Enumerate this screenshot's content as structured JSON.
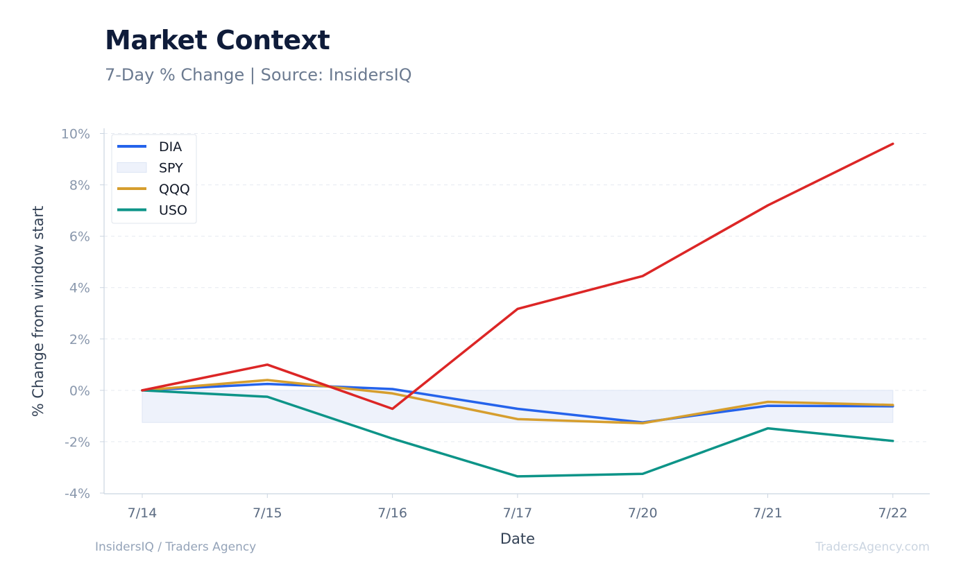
{
  "title": "Market Context",
  "subtitle": "7-Day % Change | Source: InsidersIQ",
  "footer": {
    "left": "InsidersIQ / Traders Agency",
    "right": "TradersAgency.com"
  },
  "chart_data": {
    "type": "line",
    "xlabel": "Date",
    "ylabel": "% Change from window start",
    "categories": [
      "7/14",
      "7/15",
      "7/16",
      "7/17",
      "7/20",
      "7/21",
      "7/22"
    ],
    "ylim": [
      -4,
      10
    ],
    "yticks": [
      -4,
      -2,
      0,
      2,
      4,
      6,
      8,
      10
    ],
    "ytick_labels": [
      "-4%",
      "-2%",
      "0%",
      "2%",
      "4%",
      "6%",
      "8%",
      "10%"
    ],
    "grid": true,
    "legend_position": "top-left",
    "series": [
      {
        "name": "DIA",
        "style": "line",
        "color": "#2563eb",
        "values": [
          0,
          0.25,
          0.05,
          -0.72,
          -1.25,
          -0.6,
          -0.62
        ]
      },
      {
        "name": "SPY",
        "style": "area-band",
        "color": "#dbe4f7",
        "band": [
          -1.25,
          0.0
        ]
      },
      {
        "name": "QQQ",
        "style": "line",
        "color": "#d69e2e",
        "values": [
          0,
          0.4,
          -0.12,
          -1.12,
          -1.28,
          -0.45,
          -0.57
        ]
      },
      {
        "name": "USO",
        "style": "line",
        "color": "#0d9488",
        "values": [
          0,
          -0.25,
          -1.88,
          -3.35,
          -3.25,
          -1.48,
          -1.97
        ]
      },
      {
        "name": "",
        "style": "line",
        "color": "#dc2626",
        "values": [
          0,
          1.0,
          -0.72,
          3.17,
          4.45,
          7.2,
          9.6
        ]
      }
    ]
  }
}
